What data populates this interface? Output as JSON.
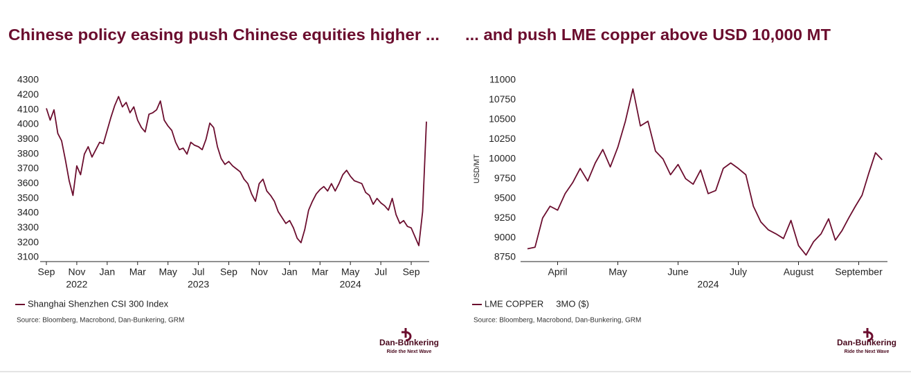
{
  "branding": {
    "name": "Dan-Bunkering",
    "tagline": "Ride the Next Wave"
  },
  "chart_data": [
    {
      "type": "line",
      "title": "Chinese policy easing push Chinese equities higher ...",
      "x": [
        "2022-09",
        "2022-09",
        "2022-09",
        "2022-09",
        "2022-10",
        "2022-10",
        "2022-10",
        "2022-10",
        "2022-11",
        "2022-11",
        "2022-11",
        "2022-11",
        "2022-12",
        "2022-12",
        "2022-12",
        "2022-12",
        "2023-01",
        "2023-01",
        "2023-01",
        "2023-01",
        "2023-02",
        "2023-02",
        "2023-02",
        "2023-02",
        "2023-03",
        "2023-03",
        "2023-03",
        "2023-03",
        "2023-04",
        "2023-04",
        "2023-04",
        "2023-04",
        "2023-05",
        "2023-05",
        "2023-05",
        "2023-05",
        "2023-06",
        "2023-06",
        "2023-06",
        "2023-06",
        "2023-07",
        "2023-07",
        "2023-07",
        "2023-07",
        "2023-08",
        "2023-08",
        "2023-08",
        "2023-08",
        "2023-09",
        "2023-09",
        "2023-09",
        "2023-09",
        "2023-10",
        "2023-10",
        "2023-10",
        "2023-10",
        "2023-11",
        "2023-11",
        "2023-11",
        "2023-11",
        "2023-12",
        "2023-12",
        "2023-12",
        "2023-12",
        "2024-01",
        "2024-01",
        "2024-01",
        "2024-01",
        "2024-02",
        "2024-02",
        "2024-02",
        "2024-02",
        "2024-03",
        "2024-03",
        "2024-03",
        "2024-03",
        "2024-04",
        "2024-04",
        "2024-04",
        "2024-04",
        "2024-05",
        "2024-05",
        "2024-05",
        "2024-05",
        "2024-06",
        "2024-06",
        "2024-06",
        "2024-06",
        "2024-07",
        "2024-07",
        "2024-07",
        "2024-07",
        "2024-08",
        "2024-08",
        "2024-08",
        "2024-08",
        "2024-09",
        "2024-09",
        "2024-09",
        "2024-09",
        "2024-10"
      ],
      "series": [
        {
          "name": "Shanghai Shenzhen CSI 300 Index",
          "color": "#6b0d2e",
          "values": [
            4110,
            4030,
            4100,
            3940,
            3890,
            3760,
            3620,
            3520,
            3720,
            3660,
            3800,
            3850,
            3780,
            3830,
            3880,
            3870,
            3960,
            4050,
            4130,
            4190,
            4120,
            4150,
            4080,
            4120,
            4030,
            3980,
            3950,
            4070,
            4080,
            4100,
            4160,
            4030,
            3990,
            3960,
            3880,
            3830,
            3840,
            3800,
            3880,
            3860,
            3850,
            3830,
            3900,
            4010,
            3980,
            3850,
            3770,
            3730,
            3750,
            3720,
            3700,
            3680,
            3630,
            3600,
            3530,
            3480,
            3600,
            3630,
            3550,
            3520,
            3480,
            3410,
            3370,
            3330,
            3350,
            3300,
            3230,
            3200,
            3290,
            3420,
            3480,
            3530,
            3560,
            3580,
            3550,
            3600,
            3550,
            3600,
            3660,
            3690,
            3650,
            3620,
            3610,
            3600,
            3540,
            3520,
            3460,
            3500,
            3470,
            3450,
            3420,
            3500,
            3390,
            3330,
            3350,
            3310,
            3300,
            3240,
            3180,
            3410,
            4020
          ]
        }
      ],
      "xlim": [
        "2022-09",
        "2024-10"
      ],
      "xticks": [
        {
          "value": "2022-09",
          "label": "Sep"
        },
        {
          "value": "2022-11",
          "label": "Nov"
        },
        {
          "value": "2023-01",
          "label": "Jan"
        },
        {
          "value": "2023-03",
          "label": "Mar"
        },
        {
          "value": "2023-05",
          "label": "May"
        },
        {
          "value": "2023-07",
          "label": "Jul"
        },
        {
          "value": "2023-09",
          "label": "Sep"
        },
        {
          "value": "2023-11",
          "label": "Nov"
        },
        {
          "value": "2024-01",
          "label": "Jan"
        },
        {
          "value": "2024-03",
          "label": "Mar"
        },
        {
          "value": "2024-05",
          "label": "May"
        },
        {
          "value": "2024-07",
          "label": "Jul"
        },
        {
          "value": "2024-09",
          "label": "Sep"
        }
      ],
      "years": [
        {
          "value": "2022-11",
          "label": "2022"
        },
        {
          "value": "2023-07",
          "label": "2023"
        },
        {
          "value": "2024-05",
          "label": "2024"
        }
      ],
      "ylim": [
        3100,
        4300
      ],
      "yticks": [
        3100,
        3200,
        3300,
        3400,
        3500,
        3600,
        3700,
        3800,
        3900,
        4000,
        4100,
        4200,
        4300
      ],
      "source": "Source: Bloomberg, Macrobond, Dan-Bunkering, GRM"
    },
    {
      "type": "line",
      "title": "... and push LME copper above USD 10,000 MT",
      "ylabel": "USD/MT",
      "x": [
        "2024-04",
        "2024-04",
        "2024-04",
        "2024-04",
        "2024-04",
        "2024-04",
        "2024-04",
        "2024-04",
        "2024-05",
        "2024-05",
        "2024-05",
        "2024-05",
        "2024-05",
        "2024-05",
        "2024-05",
        "2024-05",
        "2024-06",
        "2024-06",
        "2024-06",
        "2024-06",
        "2024-06",
        "2024-06",
        "2024-06",
        "2024-06",
        "2024-07",
        "2024-07",
        "2024-07",
        "2024-07",
        "2024-07",
        "2024-07",
        "2024-07",
        "2024-07",
        "2024-08",
        "2024-08",
        "2024-08",
        "2024-08",
        "2024-08",
        "2024-08",
        "2024-08",
        "2024-08",
        "2024-09",
        "2024-09",
        "2024-09",
        "2024-09",
        "2024-09",
        "2024-09",
        "2024-09",
        "2024-09",
        "2024-09"
      ],
      "series": [
        {
          "name": "LME COPPER     3MO ($)",
          "color": "#6b0d2e",
          "values": [
            8860,
            8880,
            9250,
            9400,
            9350,
            9560,
            9700,
            9880,
            9720,
            9950,
            10120,
            9900,
            10150,
            10480,
            10890,
            10420,
            10480,
            10100,
            10000,
            9800,
            9930,
            9750,
            9680,
            9860,
            9560,
            9600,
            9880,
            9950,
            9880,
            9800,
            9400,
            9200,
            9100,
            9050,
            8990,
            9220,
            8900,
            8780,
            8950,
            9050,
            9240,
            8970,
            9090,
            9250,
            9400,
            9540,
            9820,
            10080,
            9990
          ]
        }
      ],
      "xlim": [
        "2024-04",
        "2024-10"
      ],
      "xticks": [
        {
          "value": "2024-04",
          "label": "April"
        },
        {
          "value": "2024-05",
          "label": "May"
        },
        {
          "value": "2024-06",
          "label": "June"
        },
        {
          "value": "2024-07",
          "label": "July"
        },
        {
          "value": "2024-08",
          "label": "August"
        },
        {
          "value": "2024-09",
          "label": "September"
        }
      ],
      "years": [
        {
          "value": "2024-07",
          "label": "2024"
        }
      ],
      "ylim": [
        8750,
        11000
      ],
      "yticks": [
        8750,
        9000,
        9250,
        9500,
        9750,
        10000,
        10250,
        10500,
        10750,
        11000
      ],
      "source": "Source: Bloomberg, Macrobond, Dan-Bunkering, GRM"
    }
  ]
}
